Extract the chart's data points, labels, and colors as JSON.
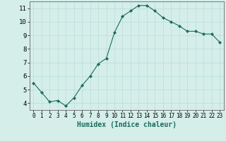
{
  "x": [
    0,
    1,
    2,
    3,
    4,
    5,
    6,
    7,
    8,
    9,
    10,
    11,
    12,
    13,
    14,
    15,
    16,
    17,
    18,
    19,
    20,
    21,
    22,
    23
  ],
  "y": [
    5.5,
    4.8,
    4.1,
    4.2,
    3.8,
    4.4,
    5.3,
    6.0,
    6.9,
    7.3,
    9.2,
    10.4,
    10.8,
    11.2,
    11.2,
    10.8,
    10.3,
    10.0,
    9.7,
    9.3,
    9.3,
    9.1,
    9.1,
    8.5
  ],
  "xlabel": "Humidex (Indice chaleur)",
  "bg_color": "#d5eeea",
  "line_color": "#1a6b5a",
  "marker_color": "#1a6b5a",
  "grid_color_major": "#b8ddd7",
  "grid_color_minor": "#cce8e4",
  "xlim": [
    -0.5,
    23.5
  ],
  "ylim": [
    3.5,
    11.5
  ],
  "yticks": [
    4,
    5,
    6,
    7,
    8,
    9,
    10,
    11
  ],
  "xticks": [
    0,
    1,
    2,
    3,
    4,
    5,
    6,
    7,
    8,
    9,
    10,
    11,
    12,
    13,
    14,
    15,
    16,
    17,
    18,
    19,
    20,
    21,
    22,
    23
  ]
}
